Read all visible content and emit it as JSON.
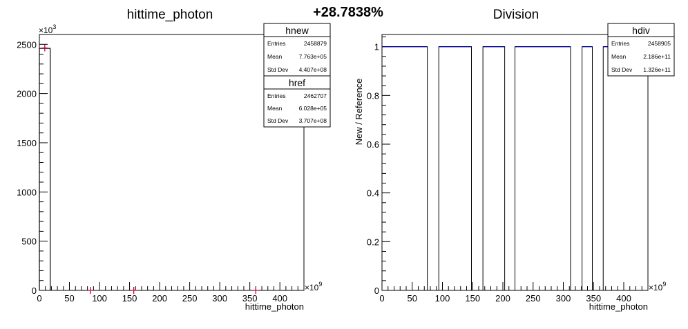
{
  "header": {
    "percent_change": "+28.7838%"
  },
  "chart_data": [
    {
      "type": "bar",
      "title": "hittime_photon",
      "xlabel": "hittime_photon",
      "ylabel": "",
      "x_multiplier_label": "×10",
      "x_multiplier_exp": "9",
      "y_multiplier_label": "×10",
      "y_multiplier_exp": "3",
      "xlim": [
        0,
        440
      ],
      "ylim": [
        0,
        2600
      ],
      "x_ticks": [
        "0",
        "50",
        "100",
        "150",
        "200",
        "250",
        "300",
        "350",
        "400"
      ],
      "y_ticks": [
        "0",
        "500",
        "1000",
        "1500",
        "2000",
        "2500"
      ],
      "series": [
        {
          "name": "hnew",
          "color": "#000000",
          "bins": [
            {
              "x0": 0,
              "x1": 18,
              "y": 2459
            }
          ]
        },
        {
          "name": "href",
          "color": "#cc0033",
          "points": [
            {
              "x": 9,
              "y": 2463
            },
            {
              "x": 85,
              "y": 0
            },
            {
              "x": 157,
              "y": 0
            },
            {
              "x": 360,
              "y": 0
            }
          ]
        }
      ],
      "stats_boxes": [
        {
          "name": "hnew",
          "rows": [
            {
              "label": "Entries",
              "value": "2458879"
            },
            {
              "label": "Mean",
              "value": "7.763e+05"
            },
            {
              "label": "Std Dev",
              "value": "4.407e+08"
            }
          ]
        },
        {
          "name": "href",
          "rows": [
            {
              "label": "Entries",
              "value": "2462707"
            },
            {
              "label": "Mean",
              "value": "6.028e+05"
            },
            {
              "label": "Std Dev",
              "value": "3.707e+08"
            }
          ]
        }
      ]
    },
    {
      "type": "bar",
      "title": "Division",
      "xlabel": "hittime_photon",
      "ylabel": "New / Reference",
      "x_multiplier_label": "×10",
      "x_multiplier_exp": "9",
      "xlim": [
        0,
        440
      ],
      "ylim": [
        0,
        1.05
      ],
      "x_ticks": [
        "0",
        "50",
        "100",
        "150",
        "200",
        "250",
        "300",
        "350",
        "400"
      ],
      "y_ticks": [
        "0",
        "0.2",
        "0.4",
        "0.6",
        "0.8",
        "1"
      ],
      "series": [
        {
          "name": "hdiv",
          "color": "#000099",
          "segments": [
            [
              0,
              75
            ],
            [
              94,
              148
            ],
            [
              167,
              203
            ],
            [
              220,
              312
            ],
            [
              331,
              348
            ],
            [
              366,
              440
            ]
          ]
        }
      ],
      "stats_boxes": [
        {
          "name": "hdiv",
          "rows": [
            {
              "label": "Entries",
              "value": "2458905"
            },
            {
              "label": "Mean",
              "value": "2.186e+11"
            },
            {
              "label": "Std Dev",
              "value": "1.326e+11"
            }
          ]
        }
      ]
    }
  ]
}
